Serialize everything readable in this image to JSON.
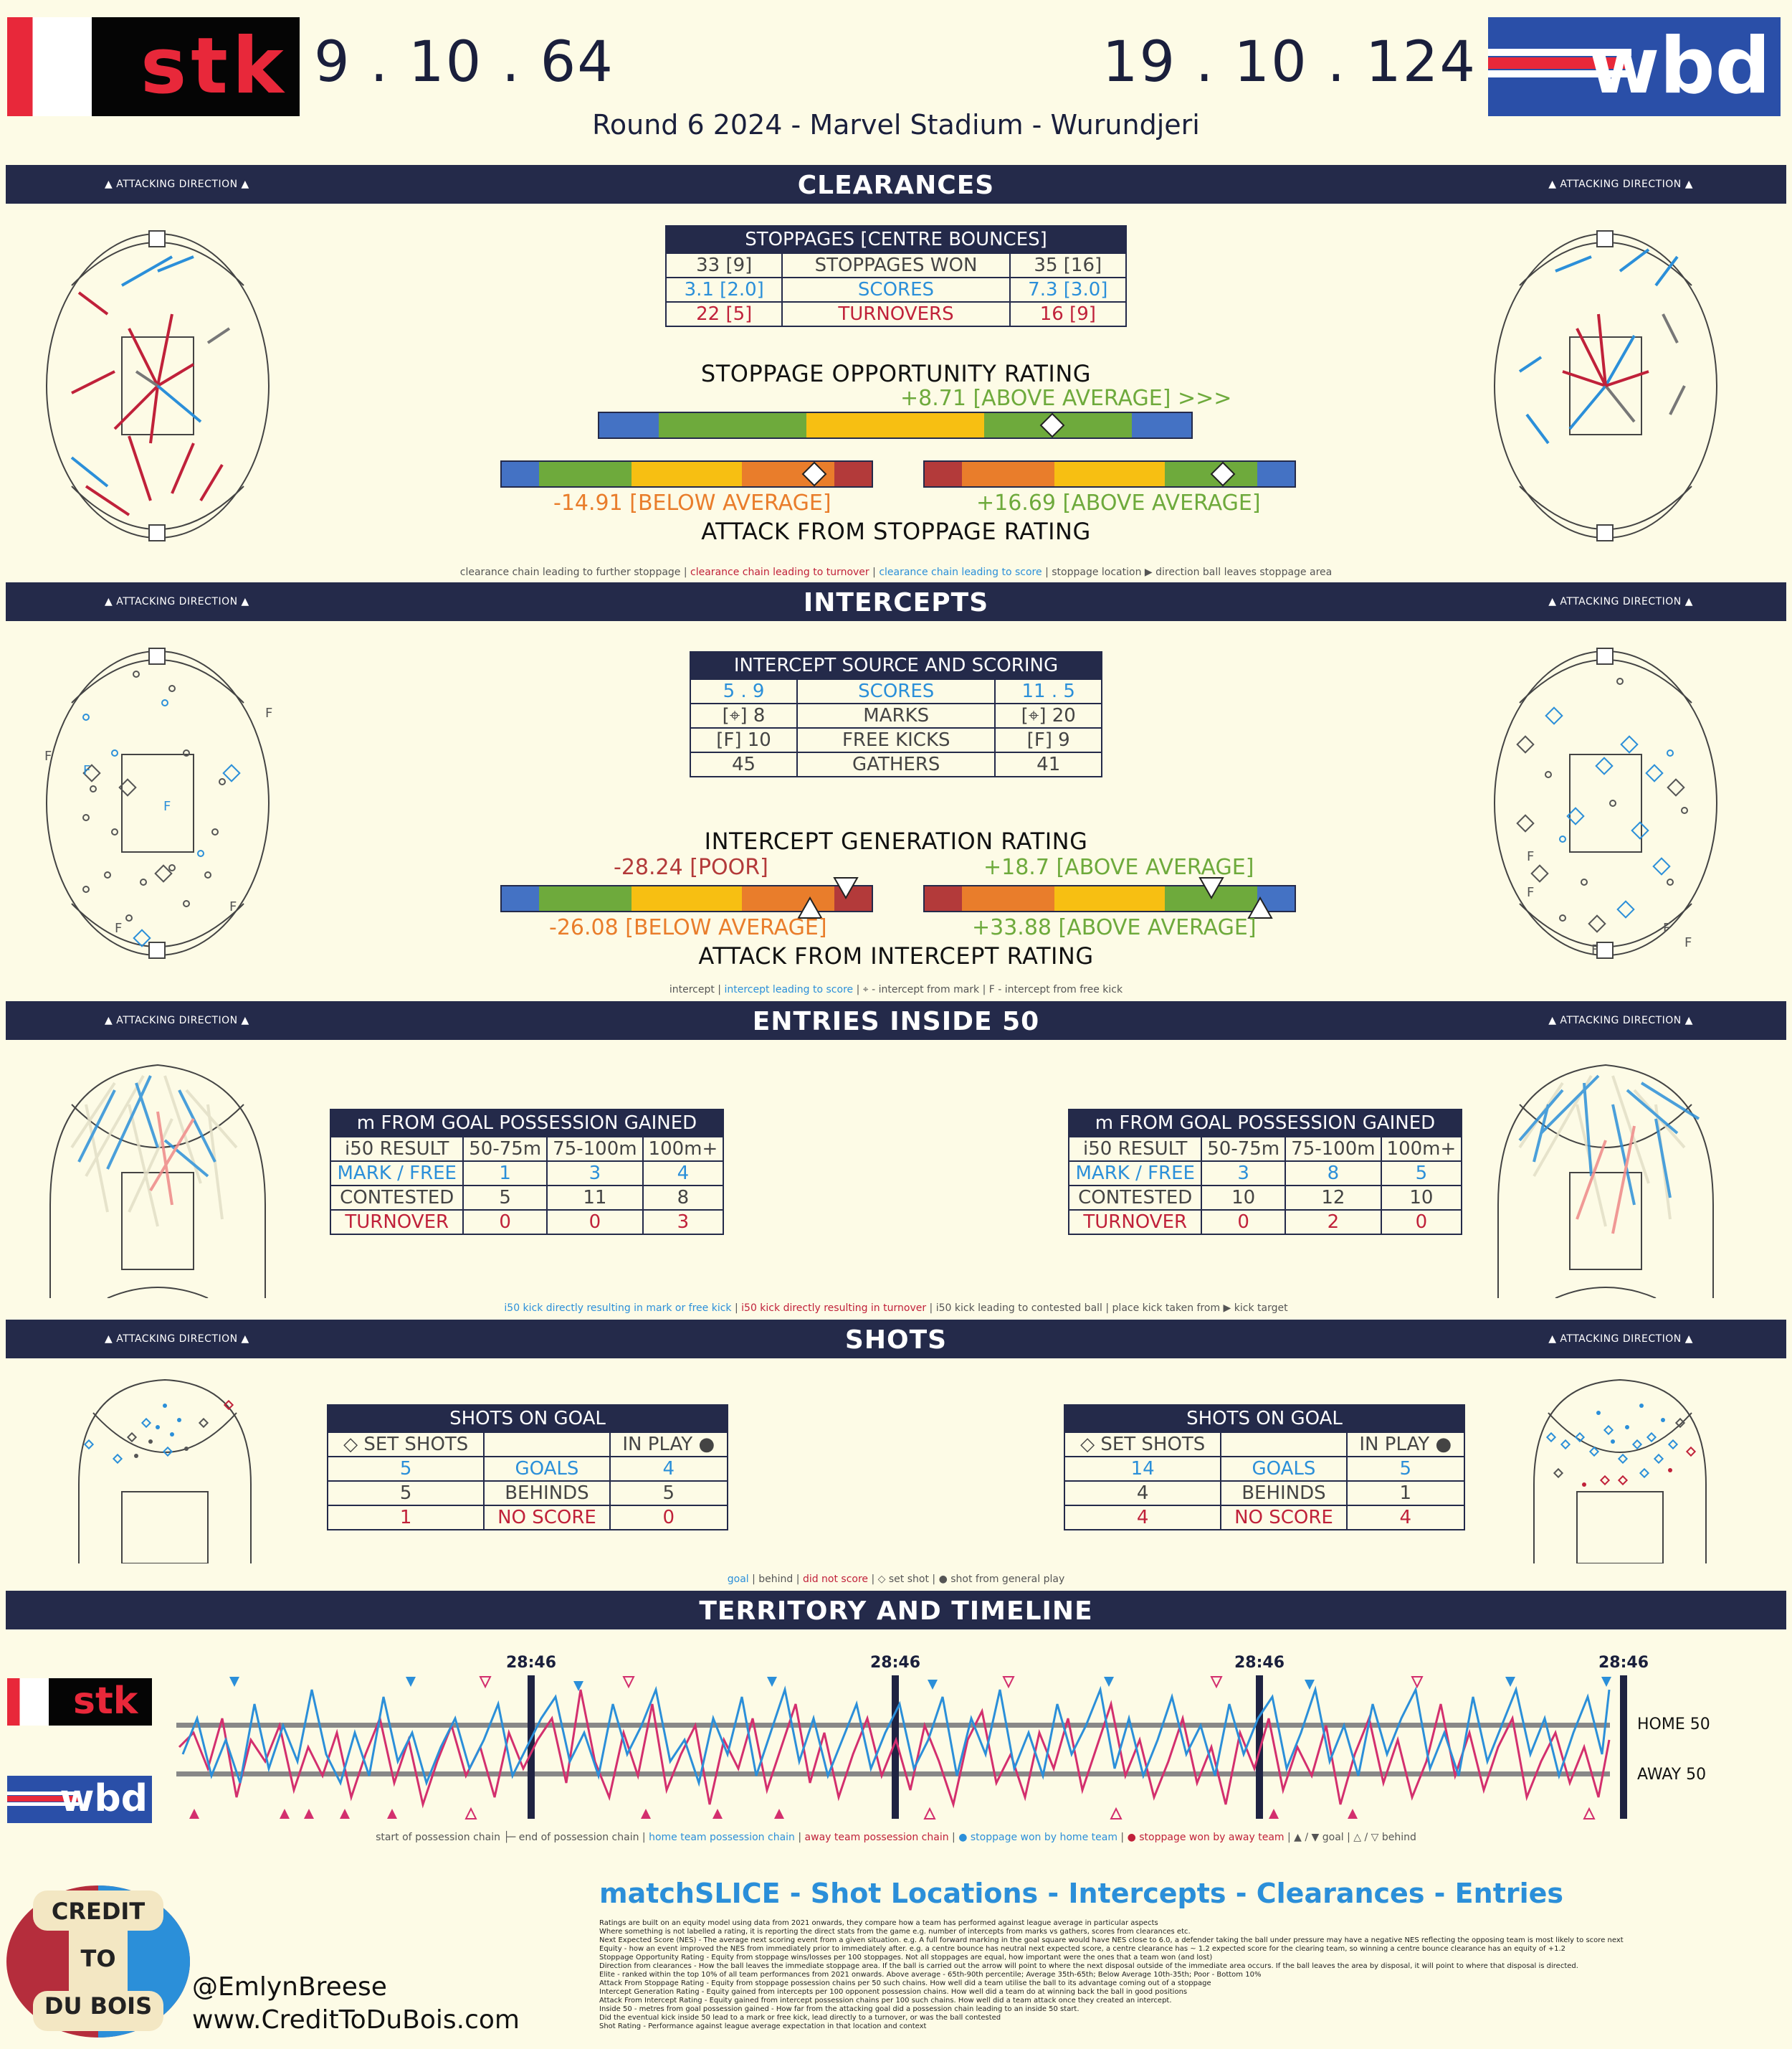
{
  "header": {
    "home_abbr": "stk",
    "away_abbr": "wbd",
    "home_score": "9 . 10 . 64",
    "away_score": "19 . 10 . 124",
    "match_info": "Round 6 2024 - Marvel Stadium - Wurundjeri"
  },
  "attacking_direction": "▲ ATTACKING DIRECTION ▲",
  "clearances": {
    "title": "CLEARANCES",
    "table_title": "STOPPAGES [CENTRE BOUNCES]",
    "rows": [
      {
        "home": "33 [9]",
        "label": "STOPPAGES WON",
        "away": "35 [16]",
        "style": ""
      },
      {
        "home": "3.1 [2.0]",
        "label": "SCORES",
        "away": "7.3 [3.0]",
        "style": "blue"
      },
      {
        "home": "22 [5]",
        "label": "TURNOVERS",
        "away": "16 [9]",
        "style": "red"
      }
    ],
    "opportunity_title": "STOPPAGE OPPORTUNITY RATING",
    "opportunity_value": "+8.71 [ABOVE AVERAGE] >>>",
    "attack_home_value": "-14.91 [BELOW AVERAGE]",
    "attack_away_value": "+16.69 [ABOVE AVERAGE]",
    "attack_title": "ATTACK FROM STOPPAGE RATING",
    "legend": {
      "a": "clearance chain leading to further stoppage | ",
      "b": "clearance chain leading to turnover",
      "c": " | ",
      "d": "clearance chain leading to score",
      "e": " | stoppage location ▶ direction ball leaves stoppage area"
    }
  },
  "intercepts": {
    "title": "INTERCEPTS",
    "table_title": "INTERCEPT SOURCE AND SCORING",
    "rows": [
      {
        "home": "5 . 9",
        "label": "SCORES",
        "away": "11 . 5",
        "style": "blue"
      },
      {
        "home": "[⌖] 8",
        "label": "MARKS",
        "away": "[⌖] 20",
        "style": ""
      },
      {
        "home": "[F] 10",
        "label": "FREE KICKS",
        "away": "[F] 9",
        "style": ""
      },
      {
        "home": "45",
        "label": "GATHERS",
        "away": "41",
        "style": ""
      }
    ],
    "generation_title": "INTERCEPT GENERATION RATING",
    "generation_home_value": "-28.24 [POOR]",
    "generation_away_value": "+18.7 [ABOVE AVERAGE]",
    "attack_home_value": "-26.08 [BELOW AVERAGE]",
    "attack_away_value": "+33.88 [ABOVE AVERAGE]",
    "attack_title": "ATTACK FROM INTERCEPT RATING",
    "legend": {
      "a": "intercept | ",
      "b": "intercept leading to score",
      "c": " | ⌖ - intercept from mark | F - intercept from free kick"
    }
  },
  "entries": {
    "title": "ENTRIES INSIDE 50",
    "table_title": "m FROM GOAL POSSESSION GAINED",
    "headers": [
      "i50 RESULT",
      "50-75m",
      "75-100m",
      "100m+"
    ],
    "home_rows": [
      {
        "label": "MARK / FREE",
        "v1": "1",
        "v2": "3",
        "v3": "4",
        "style": "blue"
      },
      {
        "label": "CONTESTED",
        "v1": "5",
        "v2": "11",
        "v3": "8",
        "style": ""
      },
      {
        "label": "TURNOVER",
        "v1": "0",
        "v2": "0",
        "v3": "3",
        "style": "red"
      }
    ],
    "away_rows": [
      {
        "label": "MARK / FREE",
        "v1": "3",
        "v2": "8",
        "v3": "5",
        "style": "blue"
      },
      {
        "label": "CONTESTED",
        "v1": "10",
        "v2": "12",
        "v3": "10",
        "style": ""
      },
      {
        "label": "TURNOVER",
        "v1": "0",
        "v2": "2",
        "v3": "0",
        "style": "red"
      }
    ],
    "legend": {
      "a": "i50 kick directly resulting in mark or free kick",
      "b": " | ",
      "c": "i50 kick directly resulting in turnover",
      "d": " | i50 kick leading to contested ball | place kick taken from ▶ kick target"
    }
  },
  "shots": {
    "title": "SHOTS",
    "table_title": "SHOTS ON GOAL",
    "col_left": "◇ SET SHOTS",
    "col_right": "IN PLAY ●",
    "home_rows": [
      {
        "set": "5",
        "label": "GOALS",
        "play": "4",
        "style": "blue"
      },
      {
        "set": "5",
        "label": "BEHINDS",
        "play": "5",
        "style": ""
      },
      {
        "set": "1",
        "label": "NO SCORE",
        "play": "0",
        "style": "red"
      }
    ],
    "away_rows": [
      {
        "set": "14",
        "label": "GOALS",
        "play": "5",
        "style": "blue"
      },
      {
        "set": "4",
        "label": "BEHINDS",
        "play": "1",
        "style": ""
      },
      {
        "set": "4",
        "label": "NO SCORE",
        "play": "4",
        "style": "red"
      }
    ],
    "legend": {
      "a": "goal",
      "b": " | behind | ",
      "c": "did not score",
      "d": " | ◇ set shot | ● shot from general play"
    }
  },
  "territory": {
    "title": "TERRITORY AND TIMELINE",
    "quarter_times": [
      "28:46",
      "28:46",
      "28:46",
      "28:46"
    ],
    "home50": "HOME 50",
    "away50": "AWAY 50",
    "legend": {
      "a": "start of possession chain ├─ end of possession chain  | ",
      "b": "home team possession chain",
      "c": " | ",
      "d": "away team possession chain",
      "e": " | ",
      "f": "● stoppage won by home team",
      "g": " | ",
      "h": "● stoppage won by away team",
      "i": " | ▲ / ▼ goal | △ / ▽ behind"
    }
  },
  "footer": {
    "logo_line1": "CREDIT",
    "logo_line2": "TO",
    "logo_line3": "DU BOIS",
    "handle": "@EmlynBreese",
    "website": "www.CreditToDuBois.com",
    "title": "matchSLICE - Shot Locations - Intercepts - Clearances - Entries",
    "notes": [
      "Ratings are built on an equity model using data from 2021 onwards, they compare how a team has performed against league average in particular aspects",
      "    Where something is not labelled a rating, it is reporting the direct stats from the game e.g. number of intercepts from marks vs gathers, scores from clearances etc.",
      "Next Expected Score (NES) - The average next scoring event from a given situation. e.g. A full forward marking in the goal square would have NES close to 6.0, a defender taking the ball under pressure may have a negative NES reflecting the opposing team is most likely to score next",
      "Equity - how an event improved the NES from immediately prior to immediately after. e.g. a centre bounce has neutral next expected score, a centre clearance has ~ 1.2 expected score for the clearing team, so winning a centre bounce clearance has an equity of +1.2",
      "Stoppage Opportunity Rating - Equity from stoppage wins/losses per 100 stoppages. Not all stoppages are equal, how important were the ones that a team won (and lost)",
      "Direction from clearances - How the ball leaves the immediate stoppage area. If the ball is carried out the arrow will point to where the next disposal outside of the immediate area occurs. If the ball leaves the area by disposal, it will point to where that disposal is directed.",
      "Elite - ranked within the top 10% of all team performances from 2021 onwards. Above average - 65th-90th percentile; Average 35th-65th; Below Average 10th-35th; Poor - Bottom 10%",
      "Attack From Stoppage Rating - Equity from stoppage possession chains per 50 such chains. How well did a team utilise the ball to its advantage coming out of a stoppage",
      "Intercept Generation Rating - Equity gained from intercepts per 100 opponent possession chains. How well did a team do at winning back the ball in good positions",
      "Attack From Intercept Rating - Equity gained from intercept possession chains per 100 such chains. How well did a team attack once they created an intercept.",
      "Inside 50 - metres from goal possession gained - How far from the attacking goal did a possession chain leading to an inside 50 start.",
      "    Did the eventual kick inside 50 lead to a mark or free kick, lead directly to a turnover, or was the ball contested",
      "Shot Rating - Performance against league average expectation in that location and context"
    ]
  },
  "colors": {
    "navy": "#242a4a",
    "home_red": "#e8283a",
    "away_blue": "#2a4fa8",
    "blue_text": "#2b8fd9",
    "red_text": "#c0213a",
    "green": "#6eaa3c",
    "orange": "#e97d2b",
    "yellow": "#f7bf12"
  }
}
